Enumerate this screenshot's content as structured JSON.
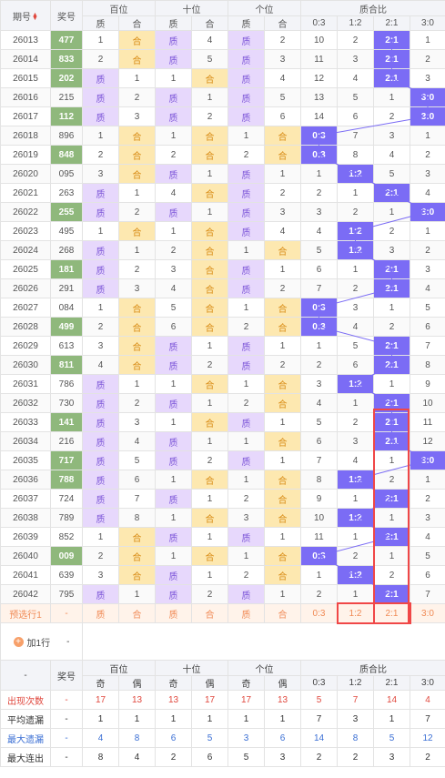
{
  "header": {
    "issue": "期号",
    "number": "奖号",
    "hundreds": "百位",
    "tens": "十位",
    "units": "个位",
    "ratio": "质合比",
    "zhi": "质",
    "he": "合",
    "ratios": [
      "0:3",
      "1:2",
      "2:1",
      "3:0"
    ]
  },
  "rows": [
    {
      "issue": "26013",
      "num": "477",
      "g": true,
      "h": [
        "1",
        "合"
      ],
      "t": [
        "质",
        "4"
      ],
      "u": [
        "质",
        "2"
      ],
      "r": [
        "10",
        "2",
        "2:1",
        "1"
      ],
      "rc": 2
    },
    {
      "issue": "26014",
      "num": "833",
      "g": true,
      "h": [
        "2",
        "合"
      ],
      "t": [
        "质",
        "5"
      ],
      "u": [
        "质",
        "3"
      ],
      "r": [
        "11",
        "3",
        "2:1",
        "2"
      ],
      "rc": 2
    },
    {
      "issue": "26015",
      "num": "202",
      "g": true,
      "h": [
        "质",
        "1"
      ],
      "t": [
        "1",
        "合"
      ],
      "u": [
        "质",
        "4"
      ],
      "r": [
        "12",
        "4",
        "2:1",
        "3"
      ],
      "rc": 2
    },
    {
      "issue": "26016",
      "num": "215",
      "g": false,
      "h": [
        "质",
        "2"
      ],
      "t": [
        "质",
        "1"
      ],
      "u": [
        "质",
        "5"
      ],
      "r": [
        "13",
        "5",
        "1",
        "3:0"
      ],
      "rc": 3
    },
    {
      "issue": "26017",
      "num": "112",
      "g": true,
      "h": [
        "质",
        "3"
      ],
      "t": [
        "质",
        "2"
      ],
      "u": [
        "质",
        "6"
      ],
      "r": [
        "14",
        "6",
        "2",
        "3:0"
      ],
      "rc": 3
    },
    {
      "issue": "26018",
      "num": "896",
      "g": false,
      "h": [
        "1",
        "合"
      ],
      "t": [
        "1",
        "合"
      ],
      "u": [
        "1",
        "合"
      ],
      "r": [
        "0:3",
        "7",
        "3",
        "1"
      ],
      "rc": 0
    },
    {
      "issue": "26019",
      "num": "848",
      "g": true,
      "h": [
        "2",
        "合"
      ],
      "t": [
        "2",
        "合"
      ],
      "u": [
        "2",
        "合"
      ],
      "r": [
        "0:3",
        "8",
        "4",
        "2"
      ],
      "rc": 0
    },
    {
      "issue": "26020",
      "num": "095",
      "g": false,
      "h": [
        "3",
        "合"
      ],
      "t": [
        "质",
        "1"
      ],
      "u": [
        "质",
        "1"
      ],
      "r": [
        "1",
        "1:2",
        "5",
        "3"
      ],
      "rc": 1
    },
    {
      "issue": "26021",
      "num": "263",
      "g": false,
      "h": [
        "质",
        "1"
      ],
      "t": [
        "4",
        "合"
      ],
      "u": [
        "质",
        "2"
      ],
      "r": [
        "2",
        "1",
        "2:1",
        "4"
      ],
      "rc": 2
    },
    {
      "issue": "26022",
      "num": "255",
      "g": true,
      "h": [
        "质",
        "2"
      ],
      "t": [
        "质",
        "1"
      ],
      "u": [
        "质",
        "3"
      ],
      "r": [
        "3",
        "2",
        "1",
        "3:0"
      ],
      "rc": 3
    },
    {
      "issue": "26023",
      "num": "495",
      "g": false,
      "h": [
        "1",
        "合"
      ],
      "t": [
        "1",
        "合"
      ],
      "u": [
        "质",
        "4"
      ],
      "r": [
        "4",
        "1:2",
        "2",
        "1"
      ],
      "rc": 1
    },
    {
      "issue": "26024",
      "num": "268",
      "g": false,
      "h": [
        "质",
        "1"
      ],
      "t": [
        "2",
        "合"
      ],
      "u": [
        "1",
        "合"
      ],
      "r": [
        "5",
        "1:2",
        "3",
        "2"
      ],
      "rc": 1
    },
    {
      "issue": "26025",
      "num": "181",
      "g": true,
      "h": [
        "质",
        "2"
      ],
      "t": [
        "3",
        "合"
      ],
      "u": [
        "质",
        "1"
      ],
      "r": [
        "6",
        "1",
        "2:1",
        "3"
      ],
      "rc": 2
    },
    {
      "issue": "26026",
      "num": "291",
      "g": false,
      "h": [
        "质",
        "3"
      ],
      "t": [
        "4",
        "合"
      ],
      "u": [
        "质",
        "2"
      ],
      "r": [
        "7",
        "2",
        "2:1",
        "4"
      ],
      "rc": 2
    },
    {
      "issue": "26027",
      "num": "084",
      "g": false,
      "h": [
        "1",
        "合"
      ],
      "t": [
        "5",
        "合"
      ],
      "u": [
        "1",
        "合"
      ],
      "r": [
        "0:3",
        "3",
        "1",
        "5"
      ],
      "rc": 0
    },
    {
      "issue": "26028",
      "num": "499",
      "g": true,
      "h": [
        "2",
        "合"
      ],
      "t": [
        "6",
        "合"
      ],
      "u": [
        "2",
        "合"
      ],
      "r": [
        "0:3",
        "4",
        "2",
        "6"
      ],
      "rc": 0
    },
    {
      "issue": "26029",
      "num": "613",
      "g": false,
      "h": [
        "3",
        "合"
      ],
      "t": [
        "质",
        "1"
      ],
      "u": [
        "质",
        "1"
      ],
      "r": [
        "1",
        "5",
        "2:1",
        "7"
      ],
      "rc": 2
    },
    {
      "issue": "26030",
      "num": "811",
      "g": true,
      "h": [
        "4",
        "合"
      ],
      "t": [
        "质",
        "2"
      ],
      "u": [
        "质",
        "2"
      ],
      "r": [
        "2",
        "6",
        "2:1",
        "8"
      ],
      "rc": 2
    },
    {
      "issue": "26031",
      "num": "786",
      "g": false,
      "h": [
        "质",
        "1"
      ],
      "t": [
        "1",
        "合"
      ],
      "u": [
        "1",
        "合"
      ],
      "r": [
        "3",
        "1:2",
        "1",
        "9"
      ],
      "rc": 1
    },
    {
      "issue": "26032",
      "num": "730",
      "g": false,
      "h": [
        "质",
        "2"
      ],
      "t": [
        "质",
        "1"
      ],
      "u": [
        "2",
        "合"
      ],
      "r": [
        "4",
        "1",
        "2:1",
        "10"
      ],
      "rc": 2
    },
    {
      "issue": "26033",
      "num": "141",
      "g": true,
      "h": [
        "质",
        "3"
      ],
      "t": [
        "1",
        "合"
      ],
      "u": [
        "质",
        "1"
      ],
      "r": [
        "5",
        "2",
        "2:1",
        "11"
      ],
      "rc": 2
    },
    {
      "issue": "26034",
      "num": "216",
      "g": false,
      "h": [
        "质",
        "4"
      ],
      "t": [
        "质",
        "1"
      ],
      "u": [
        "1",
        "合"
      ],
      "r": [
        "6",
        "3",
        "2:1",
        "12"
      ],
      "rc": 2
    },
    {
      "issue": "26035",
      "num": "717",
      "g": true,
      "h": [
        "质",
        "5"
      ],
      "t": [
        "质",
        "2"
      ],
      "u": [
        "质",
        "1"
      ],
      "r": [
        "7",
        "4",
        "1",
        "3:0"
      ],
      "rc": 3
    },
    {
      "issue": "26036",
      "num": "788",
      "g": true,
      "h": [
        "质",
        "6"
      ],
      "t": [
        "1",
        "合"
      ],
      "u": [
        "1",
        "合"
      ],
      "r": [
        "8",
        "1:2",
        "2",
        "1"
      ],
      "rc": 1
    },
    {
      "issue": "26037",
      "num": "724",
      "g": false,
      "h": [
        "质",
        "7"
      ],
      "t": [
        "质",
        "1"
      ],
      "u": [
        "2",
        "合"
      ],
      "r": [
        "9",
        "1",
        "2:1",
        "2"
      ],
      "rc": 2
    },
    {
      "issue": "26038",
      "num": "789",
      "g": false,
      "h": [
        "质",
        "8"
      ],
      "t": [
        "1",
        "合"
      ],
      "u": [
        "3",
        "合"
      ],
      "r": [
        "10",
        "1:2",
        "1",
        "3"
      ],
      "rc": 1
    },
    {
      "issue": "26039",
      "num": "852",
      "g": false,
      "h": [
        "1",
        "合"
      ],
      "t": [
        "质",
        "1"
      ],
      "u": [
        "质",
        "1"
      ],
      "r": [
        "11",
        "1",
        "2:1",
        "4"
      ],
      "rc": 2
    },
    {
      "issue": "26040",
      "num": "009",
      "g": true,
      "h": [
        "2",
        "合"
      ],
      "t": [
        "1",
        "合"
      ],
      "u": [
        "1",
        "合"
      ],
      "r": [
        "0:3",
        "2",
        "1",
        "5"
      ],
      "rc": 0
    },
    {
      "issue": "26041",
      "num": "639",
      "g": false,
      "h": [
        "3",
        "合"
      ],
      "t": [
        "质",
        "1"
      ],
      "u": [
        "2",
        "合"
      ],
      "r": [
        "1",
        "1:2",
        "2",
        "6"
      ],
      "rc": 1
    },
    {
      "issue": "26042",
      "num": "795",
      "g": false,
      "h": [
        "质",
        "1"
      ],
      "t": [
        "质",
        "2"
      ],
      "u": [
        "质",
        "1"
      ],
      "r": [
        "2",
        "1",
        "2:1",
        "7"
      ],
      "rc": 2
    }
  ],
  "predict": {
    "label": "预选行1",
    "num": "-",
    "cells": [
      "质",
      "合",
      "质",
      "合",
      "质",
      "合",
      "0:3",
      "1:2",
      "2:1",
      "3:0"
    ]
  },
  "add": {
    "label": "加1行",
    "val": "-"
  },
  "footer": {
    "dash": "-",
    "number": "奖号",
    "hundreds": "百位",
    "tens": "十位",
    "units": "个位",
    "ratio": "质合比",
    "odd": "奇",
    "even": "偶",
    "ratios": [
      "0:3",
      "1:2",
      "2:1",
      "3:0"
    ]
  },
  "stats": [
    {
      "label": "出现次数",
      "dash": "-",
      "vals": [
        "17",
        "13",
        "13",
        "17",
        "17",
        "13",
        "5",
        "7",
        "14",
        "4"
      ],
      "color": "red"
    },
    {
      "label": "平均遗漏",
      "dash": "-",
      "vals": [
        "1",
        "1",
        "1",
        "1",
        "1",
        "1",
        "7",
        "3",
        "1",
        "7"
      ],
      "color": "dark"
    },
    {
      "label": "最大遗漏",
      "dash": "-",
      "vals": [
        "4",
        "8",
        "6",
        "5",
        "3",
        "6",
        "14",
        "8",
        "5",
        "12"
      ],
      "color": "blue"
    },
    {
      "label": "最大连出",
      "dash": "-",
      "vals": [
        "8",
        "4",
        "2",
        "6",
        "5",
        "3",
        "2",
        "2",
        "3",
        "2"
      ],
      "color": "dark"
    }
  ],
  "colors": {
    "ratio": "#7b6cf5",
    "zhi": "#e7d8fc",
    "he": "#fde8b0",
    "green": "#8fb87c",
    "highlight": "#f04747"
  }
}
